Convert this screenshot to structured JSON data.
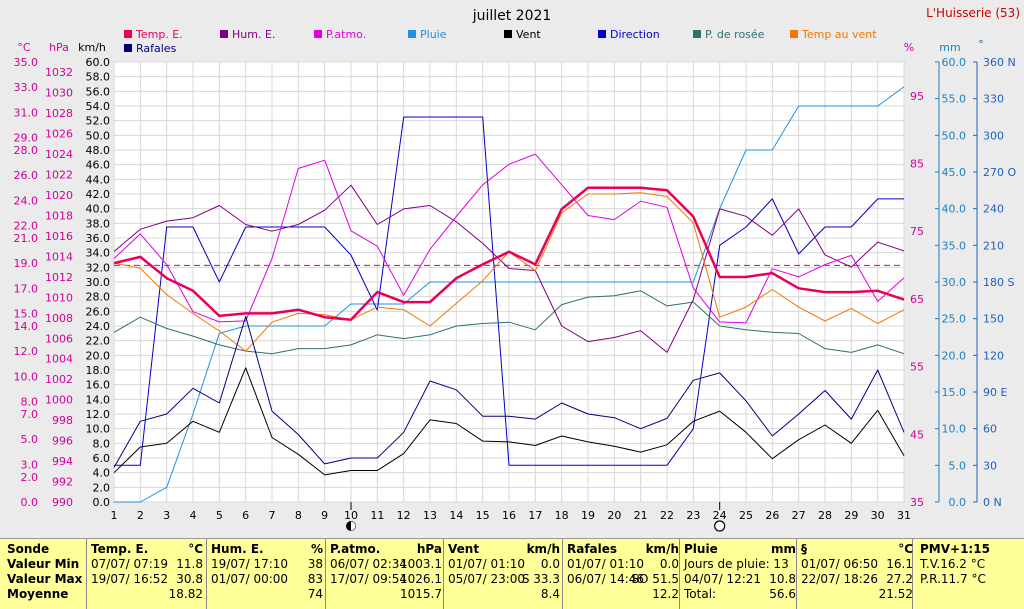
{
  "header": {
    "title": "juillet 2021",
    "location": "L'Huisserie (53)"
  },
  "axis_units": {
    "temp": "°C",
    "pressure": "hPa",
    "wind": "km/h",
    "humidity": "%",
    "rain": "mm",
    "direction": "°"
  },
  "legend": [
    {
      "label": "Temp. E.",
      "color": "#e8005a"
    },
    {
      "label": "Hum. E.",
      "color": "#800080"
    },
    {
      "label": "P.atmo.",
      "color": "#e000e0"
    },
    {
      "label": "Pluie",
      "color": "#2090e0"
    },
    {
      "label": "Vent",
      "color": "#000000"
    },
    {
      "label": "Direction",
      "color": "#0000cc"
    },
    {
      "label": "P. de rosée",
      "color": "#307070"
    },
    {
      "label": "Temp au vent",
      "color": "#f07800"
    },
    {
      "label": "Rafales",
      "color": "#000080"
    }
  ],
  "chart_data": {
    "type": "line",
    "title": "juillet 2021",
    "x": [
      1,
      2,
      3,
      4,
      5,
      6,
      7,
      8,
      9,
      10,
      11,
      12,
      13,
      14,
      15,
      16,
      17,
      18,
      19,
      20,
      21,
      22,
      23,
      24,
      25,
      26,
      27,
      28,
      29,
      30,
      31
    ],
    "axes": {
      "wind_kmh": {
        "range": [
          0,
          60
        ],
        "step": 2
      },
      "temp_c": {
        "range": [
          0,
          35
        ],
        "ticks": [
          0.0,
          2.0,
          3.0,
          5.0,
          7.0,
          8.0,
          10.0,
          12.0,
          14.0,
          15.0,
          17.0,
          19.0,
          21.0,
          22.0,
          24.0,
          26.0,
          28.0,
          29.0,
          31.0,
          33.0,
          35.0
        ]
      },
      "pressure_hpa": {
        "range": [
          990,
          1033
        ],
        "step": 2
      },
      "humidity_pct": {
        "range": [
          35,
          100
        ],
        "ticks": [
          35,
          45,
          55,
          65,
          75,
          85,
          95
        ]
      },
      "rain_mm": {
        "range": [
          0,
          60
        ],
        "step": 5
      },
      "direction_deg": {
        "range": [
          0,
          360
        ],
        "step": 30,
        "labels": {
          "0": "N",
          "90": "E",
          "180": "S",
          "270": "O",
          "360": "N"
        }
      }
    },
    "moon_phases": [
      {
        "day": 10,
        "phase": "new"
      },
      {
        "day": 24,
        "phase": "full"
      }
    ],
    "series": [
      {
        "name": "Temp. E.",
        "axis": "temp_c",
        "values": [
          19.0,
          19.5,
          17.8,
          16.8,
          14.8,
          15.0,
          15.0,
          15.3,
          14.7,
          14.5,
          16.7,
          15.9,
          15.9,
          17.8,
          18.9,
          19.9,
          18.9,
          23.3,
          25.0,
          25.0,
          25.0,
          24.8,
          22.7,
          17.9,
          17.9,
          18.2,
          17.0,
          16.7,
          16.7,
          16.8,
          16.1
        ]
      },
      {
        "name": "Temp au vent",
        "axis": "temp_c",
        "values": [
          19.0,
          18.6,
          16.5,
          15.0,
          13.6,
          12.0,
          14.3,
          15.0,
          14.9,
          14.5,
          15.5,
          15.3,
          14.0,
          15.8,
          17.6,
          19.9,
          18.4,
          23.0,
          24.5,
          24.5,
          24.6,
          24.3,
          22.2,
          14.7,
          15.5,
          16.9,
          15.5,
          14.4,
          15.4,
          14.2,
          15.3
        ]
      },
      {
        "name": "P. de rosée",
        "axis": "temp_c",
        "values": [
          13.5,
          14.7,
          13.8,
          13.2,
          12.5,
          12.0,
          11.8,
          12.2,
          12.2,
          12.5,
          13.3,
          13.0,
          13.3,
          14.0,
          14.2,
          14.3,
          13.7,
          15.7,
          16.3,
          16.4,
          16.8,
          15.6,
          15.9,
          14.0,
          13.7,
          13.5,
          13.4,
          12.2,
          11.9,
          12.5,
          11.8
        ]
      },
      {
        "name": "Hum. E.",
        "axis": "humidity_pct",
        "values": [
          72.0,
          75.3,
          76.5,
          77.0,
          78.8,
          76.0,
          75.0,
          76.0,
          78.1,
          81.8,
          76.0,
          78.3,
          78.8,
          76.4,
          73.2,
          69.5,
          69.2,
          61.0,
          58.7,
          59.3,
          60.3,
          57.1,
          64.9,
          78.3,
          77.2,
          74.4,
          78.3,
          71.5,
          69.7,
          73.4,
          72.1
        ]
      },
      {
        "name": "P.atmo.",
        "axis": "pressure_hpa",
        "values": [
          1013.8,
          1016.2,
          1013.2,
          1008.6,
          1007.6,
          1007.7,
          1013.8,
          1022.6,
          1023.4,
          1016.5,
          1015.0,
          1010.2,
          1014.7,
          1017.9,
          1021.0,
          1023.0,
          1024.0,
          1021.0,
          1018.0,
          1017.6,
          1019.4,
          1018.8,
          1010.9,
          1007.6,
          1007.5,
          1012.8,
          1012.0,
          1013.2,
          1014.1,
          1009.6,
          1011.9
        ]
      },
      {
        "name": "Vent",
        "axis": "wind_kmh",
        "values": [
          4.0,
          7.5,
          8.0,
          11.0,
          9.5,
          18.3,
          8.8,
          6.5,
          3.7,
          4.3,
          4.3,
          6.6,
          11.2,
          10.7,
          8.3,
          8.2,
          7.7,
          9.0,
          8.2,
          7.6,
          6.8,
          7.8,
          11.0,
          12.4,
          9.5,
          5.9,
          8.5,
          10.5,
          8.0,
          12.5,
          6.3
        ]
      },
      {
        "name": "Rafales",
        "axis": "wind_kmh",
        "values": [
          4.7,
          11.0,
          12.0,
          15.5,
          13.5,
          25.3,
          12.4,
          9.2,
          5.2,
          6.0,
          6.0,
          9.5,
          16.5,
          15.3,
          11.7,
          11.7,
          11.3,
          13.5,
          12.0,
          11.5,
          10.0,
          11.4,
          16.6,
          17.6,
          13.8,
          9.0,
          12.0,
          15.2,
          11.3,
          18.0,
          9.5
        ]
      },
      {
        "name": "Direction",
        "axis": "direction_deg",
        "values": [
          30,
          30,
          225,
          225,
          180,
          225,
          225,
          225,
          225,
          202,
          157,
          315,
          315,
          315,
          315,
          30,
          30,
          30,
          30,
          30,
          30,
          30,
          60,
          210,
          225,
          248,
          203,
          225,
          225,
          248,
          248
        ]
      },
      {
        "name": "Pluie",
        "axis": "rain_mm",
        "values": [
          0,
          0,
          2,
          12,
          23,
          24,
          24,
          24,
          24,
          27,
          27,
          27,
          30,
          30,
          30,
          30,
          30,
          30,
          30,
          30,
          30,
          30,
          30,
          40,
          48,
          48,
          54,
          54,
          54,
          54,
          56.6
        ]
      }
    ],
    "reference_line": {
      "axis": "temp_c",
      "value": 18.82,
      "series": "Temp. E.",
      "style": "dashed"
    }
  },
  "summary_panel": {
    "row_labels": [
      "Sonde",
      "Valeur Min",
      "Valeur Max",
      "Moyenne"
    ],
    "columns": [
      {
        "title": "Temp. E.",
        "unit": "°C",
        "min_date": "07/07/ 07:19",
        "min_val": "11.8",
        "max_date": "19/07/ 16:52",
        "max_val": "30.8",
        "avg": "18.82"
      },
      {
        "title": "Hum. E.",
        "unit": "%",
        "min_date": "19/07/ 17:10",
        "min_val": "38",
        "max_date": "01/07/ 00:00",
        "max_val": "83",
        "avg": "74"
      },
      {
        "title": "P.atmo.",
        "unit": "hPa",
        "min_date": "06/07/ 02:34",
        "min_val": "1003.1",
        "max_date": "17/07/ 09:54",
        "max_val": "1026.1",
        "avg": "1015.7"
      },
      {
        "title": "Vent",
        "unit": "km/h",
        "min_date": "01/07/ 01:10",
        "min_val": "0.0",
        "max_date": "05/07/ 23:00",
        "max_val": "S 33.3",
        "avg": "8.4"
      },
      {
        "title": "Rafales",
        "unit": "km/h",
        "min_date": "01/07/ 01:10",
        "min_val": "0.0",
        "max_date": "06/07/ 14:46",
        "max_val": "SO 51.5",
        "avg": "12.2"
      },
      {
        "title": "Pluie",
        "unit": "mm",
        "min_date": "Jours de pluie: 13",
        "min_val": "",
        "max_date": "04/07/ 12:21",
        "max_val": "10.8",
        "avg_label": "Total:",
        "avg": "56.6"
      },
      {
        "title": "§",
        "unit": "°C",
        "min_date": "01/07/ 06:50",
        "min_val": "16.1",
        "max_date": "22/07/ 18:26",
        "max_val": "27.2",
        "avg": "21.52"
      }
    ],
    "pmv": {
      "title": "PMV+1:15",
      "tv": "T.V.16.2 °C",
      "pr": "P.R.11.7 °C"
    }
  }
}
